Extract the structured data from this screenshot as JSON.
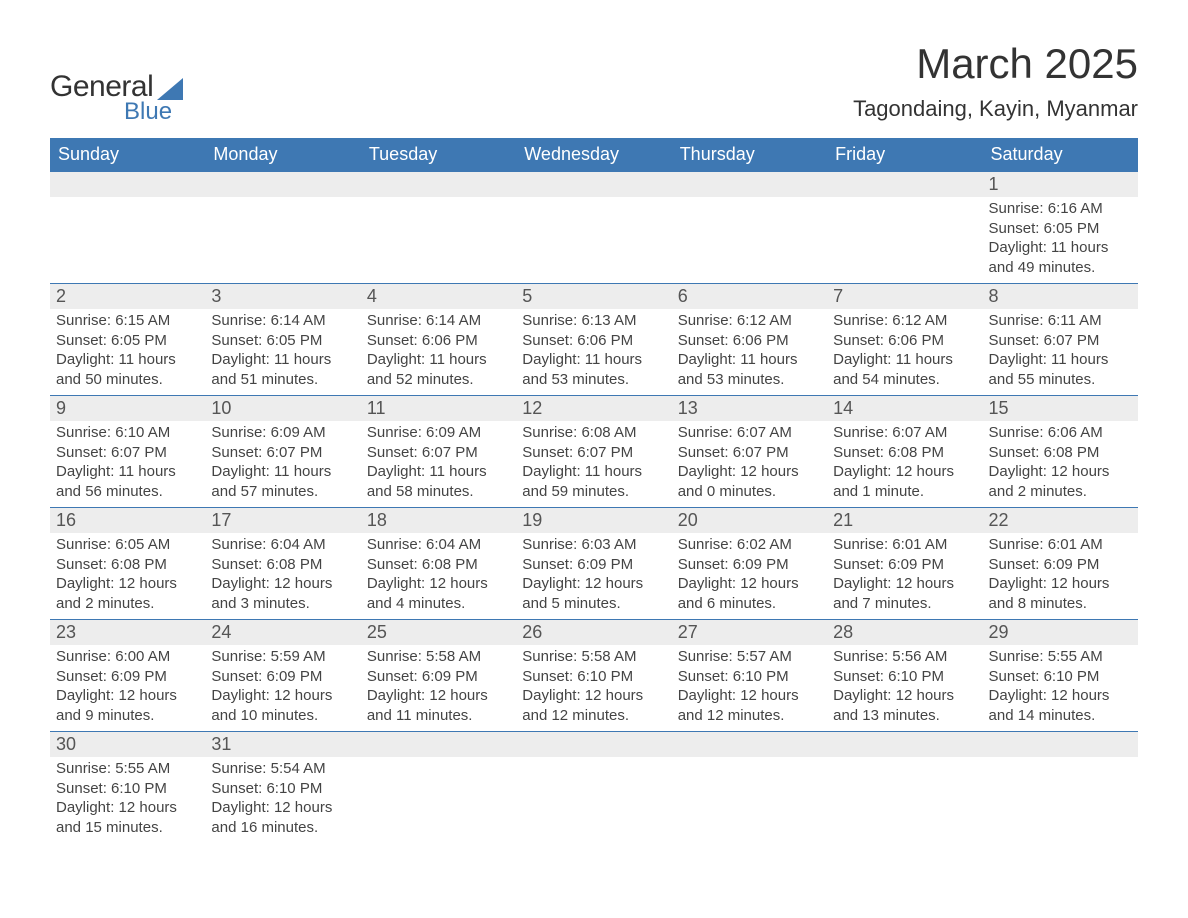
{
  "brand": {
    "general": "General",
    "blue": "Blue"
  },
  "title": "March 2025",
  "location": "Tagondaing, Kayin, Myanmar",
  "colors": {
    "header_bg": "#3e78b3",
    "header_text": "#ffffff",
    "daynum_bg": "#ededed",
    "row_border": "#3e78b3",
    "body_text": "#444444",
    "title_text": "#333333"
  },
  "font": {
    "family": "Arial",
    "title_size_pt": 32,
    "location_size_pt": 17,
    "header_size_pt": 14,
    "daynum_size_pt": 14,
    "cell_size_pt": 11
  },
  "weekdays": [
    "Sunday",
    "Monday",
    "Tuesday",
    "Wednesday",
    "Thursday",
    "Friday",
    "Saturday"
  ],
  "grid": {
    "rows": 6,
    "cols": 7
  },
  "weeks": [
    [
      null,
      null,
      null,
      null,
      null,
      null,
      {
        "n": "1",
        "sr": "Sunrise: 6:16 AM",
        "ss": "Sunset: 6:05 PM",
        "d1": "Daylight: 11 hours",
        "d2": "and 49 minutes."
      }
    ],
    [
      {
        "n": "2",
        "sr": "Sunrise: 6:15 AM",
        "ss": "Sunset: 6:05 PM",
        "d1": "Daylight: 11 hours",
        "d2": "and 50 minutes."
      },
      {
        "n": "3",
        "sr": "Sunrise: 6:14 AM",
        "ss": "Sunset: 6:05 PM",
        "d1": "Daylight: 11 hours",
        "d2": "and 51 minutes."
      },
      {
        "n": "4",
        "sr": "Sunrise: 6:14 AM",
        "ss": "Sunset: 6:06 PM",
        "d1": "Daylight: 11 hours",
        "d2": "and 52 minutes."
      },
      {
        "n": "5",
        "sr": "Sunrise: 6:13 AM",
        "ss": "Sunset: 6:06 PM",
        "d1": "Daylight: 11 hours",
        "d2": "and 53 minutes."
      },
      {
        "n": "6",
        "sr": "Sunrise: 6:12 AM",
        "ss": "Sunset: 6:06 PM",
        "d1": "Daylight: 11 hours",
        "d2": "and 53 minutes."
      },
      {
        "n": "7",
        "sr": "Sunrise: 6:12 AM",
        "ss": "Sunset: 6:06 PM",
        "d1": "Daylight: 11 hours",
        "d2": "and 54 minutes."
      },
      {
        "n": "8",
        "sr": "Sunrise: 6:11 AM",
        "ss": "Sunset: 6:07 PM",
        "d1": "Daylight: 11 hours",
        "d2": "and 55 minutes."
      }
    ],
    [
      {
        "n": "9",
        "sr": "Sunrise: 6:10 AM",
        "ss": "Sunset: 6:07 PM",
        "d1": "Daylight: 11 hours",
        "d2": "and 56 minutes."
      },
      {
        "n": "10",
        "sr": "Sunrise: 6:09 AM",
        "ss": "Sunset: 6:07 PM",
        "d1": "Daylight: 11 hours",
        "d2": "and 57 minutes."
      },
      {
        "n": "11",
        "sr": "Sunrise: 6:09 AM",
        "ss": "Sunset: 6:07 PM",
        "d1": "Daylight: 11 hours",
        "d2": "and 58 minutes."
      },
      {
        "n": "12",
        "sr": "Sunrise: 6:08 AM",
        "ss": "Sunset: 6:07 PM",
        "d1": "Daylight: 11 hours",
        "d2": "and 59 minutes."
      },
      {
        "n": "13",
        "sr": "Sunrise: 6:07 AM",
        "ss": "Sunset: 6:07 PM",
        "d1": "Daylight: 12 hours",
        "d2": "and 0 minutes."
      },
      {
        "n": "14",
        "sr": "Sunrise: 6:07 AM",
        "ss": "Sunset: 6:08 PM",
        "d1": "Daylight: 12 hours",
        "d2": "and 1 minute."
      },
      {
        "n": "15",
        "sr": "Sunrise: 6:06 AM",
        "ss": "Sunset: 6:08 PM",
        "d1": "Daylight: 12 hours",
        "d2": "and 2 minutes."
      }
    ],
    [
      {
        "n": "16",
        "sr": "Sunrise: 6:05 AM",
        "ss": "Sunset: 6:08 PM",
        "d1": "Daylight: 12 hours",
        "d2": "and 2 minutes."
      },
      {
        "n": "17",
        "sr": "Sunrise: 6:04 AM",
        "ss": "Sunset: 6:08 PM",
        "d1": "Daylight: 12 hours",
        "d2": "and 3 minutes."
      },
      {
        "n": "18",
        "sr": "Sunrise: 6:04 AM",
        "ss": "Sunset: 6:08 PM",
        "d1": "Daylight: 12 hours",
        "d2": "and 4 minutes."
      },
      {
        "n": "19",
        "sr": "Sunrise: 6:03 AM",
        "ss": "Sunset: 6:09 PM",
        "d1": "Daylight: 12 hours",
        "d2": "and 5 minutes."
      },
      {
        "n": "20",
        "sr": "Sunrise: 6:02 AM",
        "ss": "Sunset: 6:09 PM",
        "d1": "Daylight: 12 hours",
        "d2": "and 6 minutes."
      },
      {
        "n": "21",
        "sr": "Sunrise: 6:01 AM",
        "ss": "Sunset: 6:09 PM",
        "d1": "Daylight: 12 hours",
        "d2": "and 7 minutes."
      },
      {
        "n": "22",
        "sr": "Sunrise: 6:01 AM",
        "ss": "Sunset: 6:09 PM",
        "d1": "Daylight: 12 hours",
        "d2": "and 8 minutes."
      }
    ],
    [
      {
        "n": "23",
        "sr": "Sunrise: 6:00 AM",
        "ss": "Sunset: 6:09 PM",
        "d1": "Daylight: 12 hours",
        "d2": "and 9 minutes."
      },
      {
        "n": "24",
        "sr": "Sunrise: 5:59 AM",
        "ss": "Sunset: 6:09 PM",
        "d1": "Daylight: 12 hours",
        "d2": "and 10 minutes."
      },
      {
        "n": "25",
        "sr": "Sunrise: 5:58 AM",
        "ss": "Sunset: 6:09 PM",
        "d1": "Daylight: 12 hours",
        "d2": "and 11 minutes."
      },
      {
        "n": "26",
        "sr": "Sunrise: 5:58 AM",
        "ss": "Sunset: 6:10 PM",
        "d1": "Daylight: 12 hours",
        "d2": "and 12 minutes."
      },
      {
        "n": "27",
        "sr": "Sunrise: 5:57 AM",
        "ss": "Sunset: 6:10 PM",
        "d1": "Daylight: 12 hours",
        "d2": "and 12 minutes."
      },
      {
        "n": "28",
        "sr": "Sunrise: 5:56 AM",
        "ss": "Sunset: 6:10 PM",
        "d1": "Daylight: 12 hours",
        "d2": "and 13 minutes."
      },
      {
        "n": "29",
        "sr": "Sunrise: 5:55 AM",
        "ss": "Sunset: 6:10 PM",
        "d1": "Daylight: 12 hours",
        "d2": "and 14 minutes."
      }
    ],
    [
      {
        "n": "30",
        "sr": "Sunrise: 5:55 AM",
        "ss": "Sunset: 6:10 PM",
        "d1": "Daylight: 12 hours",
        "d2": "and 15 minutes."
      },
      {
        "n": "31",
        "sr": "Sunrise: 5:54 AM",
        "ss": "Sunset: 6:10 PM",
        "d1": "Daylight: 12 hours",
        "d2": "and 16 minutes."
      },
      null,
      null,
      null,
      null,
      null
    ]
  ]
}
